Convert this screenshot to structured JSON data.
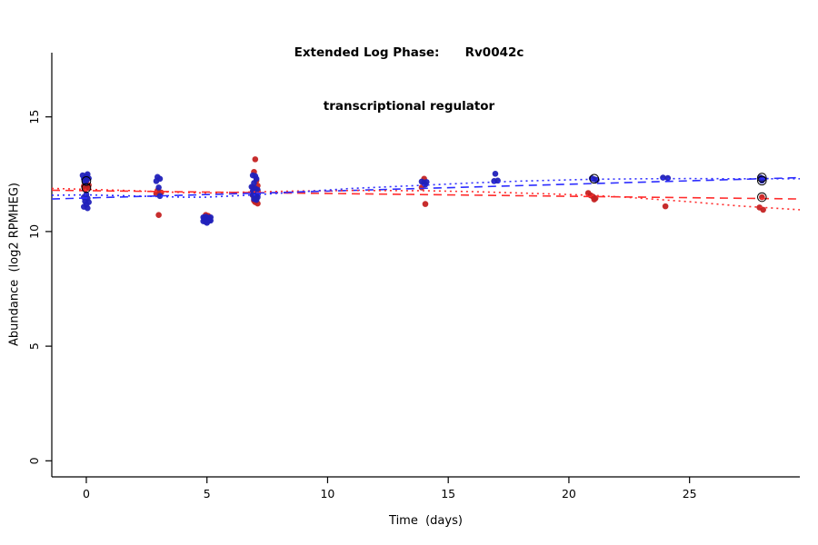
{
  "chart_data": {
    "type": "scatter",
    "title": "Extended Log Phase:      Rv0042c",
    "subtitle": "transcriptional regulator",
    "xlabel": "Time  (days)",
    "ylabel": "Abundance  (log2 RPMHEG)",
    "xlim": [
      -1.43,
      29.57
    ],
    "ylim": [
      -0.7,
      17.8
    ],
    "xticks": [
      0,
      5,
      10,
      15,
      20,
      25
    ],
    "yticks": [
      0,
      5,
      10,
      15
    ],
    "grid": false,
    "colors": {
      "point_red": "#c42222",
      "point_blue": "#2121bb",
      "line_red": "#ff2d2d",
      "line_blue": "#2d2dff",
      "outline_black": "#000000"
    },
    "series": [
      {
        "name": "red-condition-points",
        "color_key": "point_red",
        "points": [
          [
            0.0,
            12.2
          ],
          [
            0.1,
            12.02
          ],
          [
            -0.1,
            11.98
          ],
          [
            0.05,
            11.9
          ],
          [
            -0.05,
            11.85
          ],
          [
            2.95,
            11.78
          ],
          [
            3.1,
            11.7
          ],
          [
            2.9,
            11.65
          ],
          [
            3.0,
            10.72
          ],
          [
            4.95,
            10.72
          ],
          [
            5.05,
            10.68
          ],
          [
            4.9,
            10.62
          ],
          [
            5.1,
            10.58
          ],
          [
            5.0,
            10.55
          ],
          [
            7.0,
            13.15
          ],
          [
            6.95,
            12.6
          ],
          [
            7.05,
            12.22
          ],
          [
            7.1,
            12.0
          ],
          [
            6.9,
            11.92
          ],
          [
            7.0,
            11.85
          ],
          [
            7.1,
            11.78
          ],
          [
            6.9,
            11.72
          ],
          [
            7.0,
            11.68
          ],
          [
            7.1,
            11.62
          ],
          [
            6.9,
            11.58
          ],
          [
            7.0,
            11.52
          ],
          [
            7.05,
            11.45
          ],
          [
            6.95,
            11.35
          ],
          [
            7.0,
            11.28
          ],
          [
            7.1,
            11.22
          ],
          [
            14.0,
            12.3
          ],
          [
            13.9,
            11.92
          ],
          [
            14.05,
            11.2
          ],
          [
            20.8,
            11.68
          ],
          [
            20.9,
            11.58
          ],
          [
            21.0,
            11.52
          ],
          [
            21.1,
            11.45
          ],
          [
            21.05,
            11.4
          ],
          [
            24.0,
            11.1
          ],
          [
            28.0,
            11.5
          ],
          [
            27.9,
            11.05
          ],
          [
            28.05,
            10.95
          ]
        ]
      },
      {
        "name": "blue-condition-points",
        "color_key": "point_blue",
        "points": [
          [
            -0.15,
            12.45
          ],
          [
            0.05,
            12.5
          ],
          [
            0.0,
            12.4
          ],
          [
            -0.1,
            12.3
          ],
          [
            0.1,
            12.32
          ],
          [
            0.0,
            12.22
          ],
          [
            -0.05,
            12.15
          ],
          [
            0.0,
            11.62
          ],
          [
            -0.1,
            11.5
          ],
          [
            0.05,
            11.45
          ],
          [
            -0.05,
            11.32
          ],
          [
            0.1,
            11.28
          ],
          [
            0.0,
            11.18
          ],
          [
            -0.1,
            11.08
          ],
          [
            0.05,
            11.02
          ],
          [
            2.95,
            12.38
          ],
          [
            3.05,
            12.3
          ],
          [
            2.9,
            12.2
          ],
          [
            3.0,
            11.92
          ],
          [
            3.05,
            11.55
          ],
          [
            4.85,
            10.62
          ],
          [
            4.95,
            10.65
          ],
          [
            5.05,
            10.6
          ],
          [
            5.15,
            10.62
          ],
          [
            4.9,
            10.52
          ],
          [
            5.0,
            10.55
          ],
          [
            5.1,
            10.5
          ],
          [
            4.85,
            10.45
          ],
          [
            4.95,
            10.42
          ],
          [
            5.05,
            10.45
          ],
          [
            5.15,
            10.48
          ],
          [
            5.0,
            10.38
          ],
          [
            6.9,
            12.45
          ],
          [
            7.0,
            12.42
          ],
          [
            7.05,
            12.3
          ],
          [
            6.95,
            12.12
          ],
          [
            6.85,
            11.95
          ],
          [
            7.0,
            11.88
          ],
          [
            7.1,
            11.82
          ],
          [
            6.9,
            11.75
          ],
          [
            7.0,
            11.7
          ],
          [
            7.1,
            11.65
          ],
          [
            6.9,
            11.6
          ],
          [
            7.0,
            11.55
          ],
          [
            7.1,
            11.5
          ],
          [
            6.95,
            11.42
          ],
          [
            7.05,
            11.38
          ],
          [
            13.9,
            12.18
          ],
          [
            14.0,
            12.12
          ],
          [
            14.1,
            12.16
          ],
          [
            14.05,
            12.05
          ],
          [
            16.95,
            12.52
          ],
          [
            17.05,
            12.22
          ],
          [
            16.9,
            12.2
          ],
          [
            20.95,
            12.32
          ],
          [
            21.05,
            12.28
          ],
          [
            21.15,
            12.25
          ],
          [
            23.9,
            12.35
          ],
          [
            24.1,
            12.33
          ],
          [
            27.95,
            12.35
          ],
          [
            28.05,
            12.3
          ],
          [
            28.0,
            12.22
          ]
        ]
      }
    ],
    "outlined_points": [
      [
        0.0,
        12.2
      ],
      [
        0.0,
        11.9
      ],
      [
        21.05,
        12.3
      ],
      [
        28.0,
        12.35
      ],
      [
        28.0,
        12.22
      ],
      [
        28.0,
        11.5
      ]
    ],
    "fit_lines": [
      {
        "name": "red-linear-fit",
        "color_key": "line_red",
        "style": "dashed",
        "points": [
          [
            -1.43,
            11.8
          ],
          [
            29.57,
            11.42
          ]
        ]
      },
      {
        "name": "blue-linear-fit",
        "color_key": "line_blue",
        "style": "dashed",
        "points": [
          [
            -1.43,
            11.42
          ],
          [
            29.57,
            12.35
          ]
        ]
      }
    ],
    "smooth_lines": [
      {
        "name": "red-loess-fit",
        "color_key": "line_red",
        "style": "dotted",
        "points": [
          [
            -1.43,
            11.88
          ],
          [
            0,
            11.84
          ],
          [
            2,
            11.78
          ],
          [
            4,
            11.7
          ],
          [
            5,
            11.68
          ],
          [
            7,
            11.73
          ],
          [
            9,
            11.77
          ],
          [
            11,
            11.79
          ],
          [
            14,
            11.78
          ],
          [
            16,
            11.74
          ],
          [
            18,
            11.68
          ],
          [
            21,
            11.58
          ],
          [
            23,
            11.45
          ],
          [
            25,
            11.3
          ],
          [
            27,
            11.12
          ],
          [
            29.57,
            10.95
          ]
        ]
      },
      {
        "name": "blue-loess-fit",
        "color_key": "line_blue",
        "style": "dotted",
        "points": [
          [
            -1.43,
            11.58
          ],
          [
            0,
            11.6
          ],
          [
            2,
            11.55
          ],
          [
            4,
            11.5
          ],
          [
            5,
            11.5
          ],
          [
            7,
            11.6
          ],
          [
            9,
            11.74
          ],
          [
            11,
            11.88
          ],
          [
            14,
            12.02
          ],
          [
            16,
            12.12
          ],
          [
            18,
            12.2
          ],
          [
            21,
            12.28
          ],
          [
            23,
            12.3
          ],
          [
            25,
            12.31
          ],
          [
            27,
            12.3
          ],
          [
            29.57,
            12.3
          ]
        ]
      }
    ]
  }
}
